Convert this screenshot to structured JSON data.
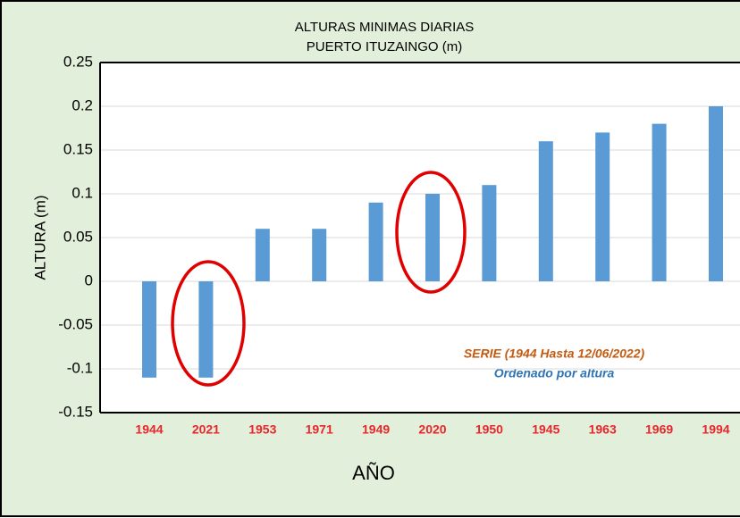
{
  "chart_data": {
    "type": "bar",
    "title": [
      "ALTURAS MINIMAS DIARIAS",
      "PUERTO ITUZAINGO (m)"
    ],
    "y_label": "ALTURA (m)",
    "x_label": "AÑO",
    "annotations": [
      "SERIE (1944 Hasta 12/06/2022)",
      "Ordenado por altura"
    ],
    "categories": [
      "1944",
      "2021",
      "1953",
      "1971",
      "1949",
      "2020",
      "1950",
      "1945",
      "1963",
      "1969",
      "1994"
    ],
    "values": [
      -0.11,
      -0.11,
      0.06,
      0.06,
      0.09,
      0.1,
      0.11,
      0.16,
      0.17,
      0.18,
      0.2
    ],
    "color": "#5b9bd5",
    "ylim": [
      -0.15,
      0.25
    ],
    "yticks": [
      0.25,
      0.2,
      0.15,
      0.1,
      0.05,
      0,
      -0.05,
      -0.1,
      -0.15
    ],
    "grid": true
  }
}
